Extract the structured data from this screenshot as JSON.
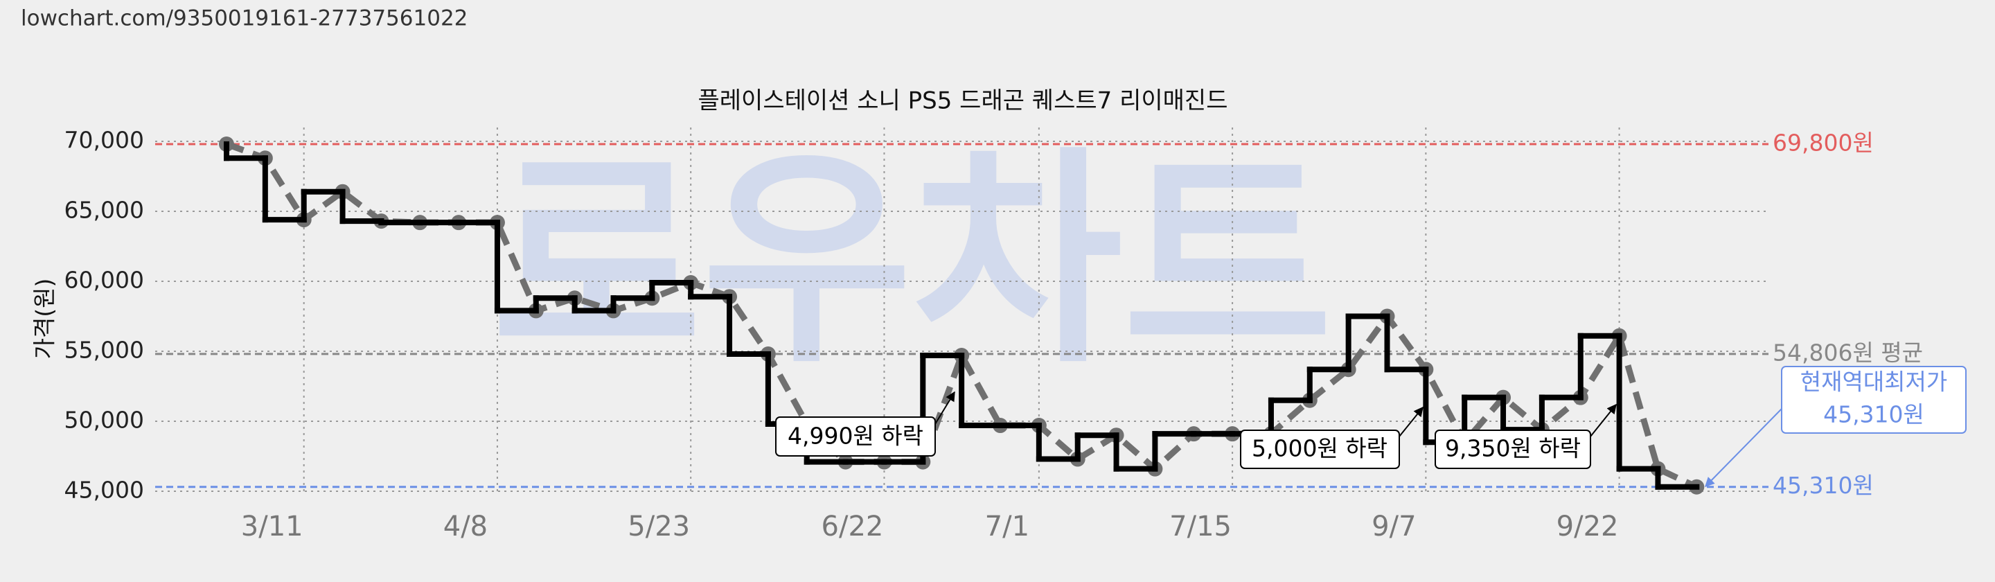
{
  "url": "lowchart.com/9350019161-27737561022",
  "chart_data": {
    "type": "step-line",
    "title": "플레이스테이션 소니 PS5 드래곤 퀘스트7 리이매진드",
    "watermark": "로우차트",
    "y_label": "가격(원)",
    "categories": [
      null,
      null,
      "3/11",
      null,
      null,
      null,
      null,
      "4/8",
      null,
      null,
      null,
      null,
      "5/23",
      null,
      null,
      null,
      null,
      "6/22",
      null,
      null,
      null,
      "7/1",
      null,
      null,
      null,
      null,
      "7/15",
      null,
      null,
      null,
      null,
      "9/7",
      null,
      null,
      null,
      null,
      "9/22",
      null,
      null
    ],
    "series": [
      {
        "color": "#000000",
        "values": [
          69800,
          68800,
          64400,
          66400,
          64300,
          64200,
          64200,
          64200,
          57900,
          58800,
          57900,
          58800,
          59900,
          58900,
          54800,
          49800,
          47100,
          47100,
          47100,
          54700,
          49700,
          49700,
          47300,
          49000,
          46600,
          49100,
          49100,
          49100,
          51500,
          53700,
          57500,
          53700,
          48500,
          51700,
          49400,
          51700,
          56100,
          46600,
          45310
        ]
      }
    ],
    "ylim": [
      45000,
      70000
    ],
    "yticks": [
      {
        "value": 45000,
        "label": "45,000"
      },
      {
        "value": 50000,
        "label": "50,000"
      },
      {
        "value": 55000,
        "label": "55,000"
      },
      {
        "value": 60000,
        "label": "60,000"
      },
      {
        "value": 65000,
        "label": "65,000"
      },
      {
        "value": 70000,
        "label": "70,000"
      }
    ],
    "grid": true,
    "reference_lines": [
      {
        "value": 69800,
        "label": "69,800원",
        "color": "#e35d5d"
      },
      {
        "value": 54806,
        "label": "54,806원 평균",
        "color": "#888888"
      },
      {
        "value": 45310,
        "label": "45,310원",
        "color": "#6b8fe6"
      }
    ],
    "annotations": [
      "4,990원 하락",
      "5,000원 하락",
      "9,350원 하락"
    ],
    "current_low": [
      "현재역대최저가",
      "45,310원"
    ]
  }
}
